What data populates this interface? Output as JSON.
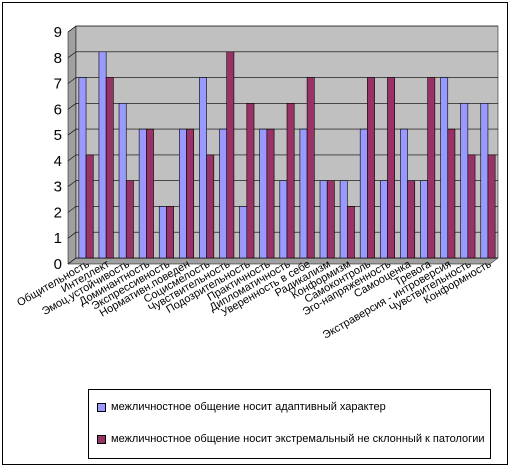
{
  "chart_data": {
    "type": "bar",
    "categories": [
      "Общительность",
      "Интеллект",
      "Эмоц.устойчивость",
      "Доминантность",
      "Экспрессивность",
      "Нормативн.поведен",
      "Социсмелость",
      "Чувствительность",
      "Подозрительность",
      "Практичность",
      "Дипломатичность",
      "Уверенность в себе",
      "Радикализм",
      "Конформизм",
      "Самоконтроль",
      "Эго-напряженность",
      "Самооценка",
      "Тревога",
      "Экстраверсия - интроверсия",
      "Чувствительность",
      "Конформность"
    ],
    "series": [
      {
        "name": "межличностное общение носит адаптивный характер",
        "color": "#9999FF",
        "values": [
          7,
          8,
          6,
          5,
          2,
          5,
          7,
          5,
          2,
          5,
          3,
          5,
          3,
          3,
          5,
          3,
          5,
          3,
          7,
          6,
          6
        ]
      },
      {
        "name": "межличностное общение носит экстремальный не склонный к патологии",
        "color": "#993366",
        "values": [
          4,
          7,
          3,
          5,
          2,
          5,
          4,
          8,
          6,
          5,
          6,
          7,
          3,
          2,
          7,
          7,
          3,
          7,
          5,
          4,
          4
        ]
      }
    ],
    "ylim": [
      0,
      9
    ],
    "yticks": [
      0,
      1,
      2,
      3,
      4,
      5,
      6,
      7,
      8,
      9
    ],
    "grid": true,
    "plot_background": "#C0C0C0",
    "legend_position": "bottom"
  }
}
